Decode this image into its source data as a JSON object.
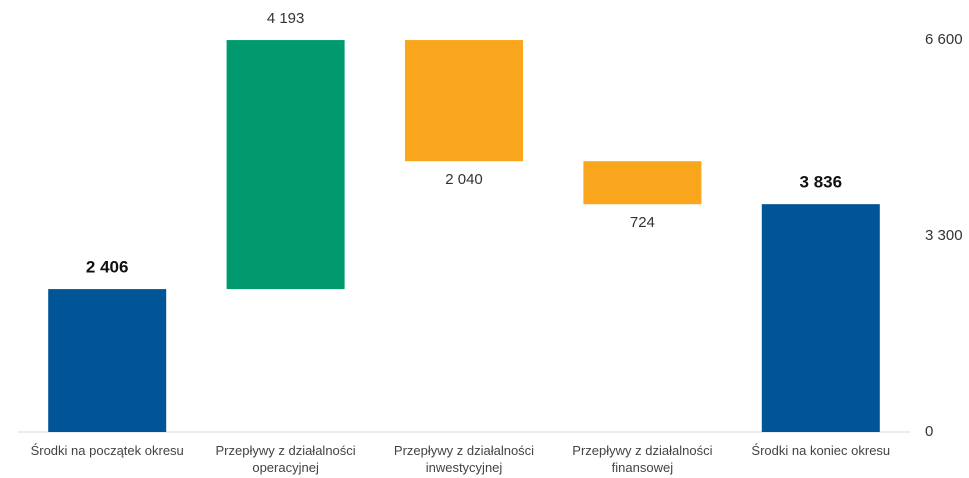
{
  "chart_data": {
    "type": "waterfall",
    "categories": [
      "Środki na początek okresu",
      "Przepływy z działalności operacyjnej",
      "Przepływy z działalności inwestycyjnej",
      "Przepływy z działalności finansowej",
      "Środki na koniec okresu"
    ],
    "measure": [
      "absolute",
      "relative",
      "relative",
      "relative",
      "absolute"
    ],
    "values": [
      2406,
      4193,
      -2040,
      -724,
      3836
    ],
    "value_labels": [
      "2 406",
      "4 193",
      "2 040",
      "724",
      "3 836"
    ],
    "colors": [
      "#005596",
      "#009a6e",
      "#f9a61c",
      "#f9a61c",
      "#005596"
    ],
    "ylim": [
      0,
      6600
    ],
    "yticks": [
      0,
      {
        "value": 3300,
        "label": "3 300"
      },
      {
        "value": 6600,
        "label": "6 600"
      }
    ],
    "yaxis_position": "right"
  }
}
